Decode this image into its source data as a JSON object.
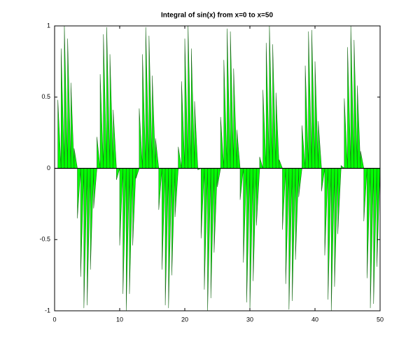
{
  "chart_data": {
    "type": "area",
    "title": "Integral of sin(x) from x=0 to x=50",
    "x": [
      0,
      0.5,
      1,
      1.5,
      2,
      2.5,
      3,
      3.5,
      4,
      4.5,
      5,
      5.5,
      6,
      6.5,
      7,
      7.5,
      8,
      8.5,
      9,
      9.5,
      10,
      10.5,
      11,
      11.5,
      12,
      12.5,
      13,
      13.5,
      14,
      14.5,
      15,
      15.5,
      16,
      16.5,
      17,
      17.5,
      18,
      18.5,
      19,
      19.5,
      20,
      20.5,
      21,
      21.5,
      22,
      22.5,
      23,
      23.5,
      24,
      24.5,
      25,
      25.5,
      26,
      26.5,
      27,
      27.5,
      28,
      28.5,
      29,
      29.5,
      30,
      30.5,
      31,
      31.5,
      32,
      32.5,
      33,
      33.5,
      34,
      34.5,
      35,
      35.5,
      36,
      36.5,
      37,
      37.5,
      38,
      38.5,
      39,
      39.5,
      40,
      40.5,
      41,
      41.5,
      42,
      42.5,
      43,
      43.5,
      44,
      44.5,
      45,
      45.5,
      46,
      46.5,
      47,
      47.5,
      48,
      48.5,
      49,
      49.5,
      50
    ],
    "values": [
      0,
      0.48,
      0.84,
      1.0,
      0.91,
      0.6,
      0.14,
      -0.35,
      -0.76,
      -0.98,
      -0.96,
      -0.71,
      -0.28,
      0.22,
      0.66,
      0.94,
      0.99,
      0.8,
      0.41,
      -0.08,
      -0.54,
      -0.88,
      -1.0,
      -0.88,
      -0.54,
      -0.07,
      0.42,
      0.8,
      0.99,
      0.93,
      0.65,
      0.21,
      -0.29,
      -0.71,
      -0.96,
      -0.98,
      -0.75,
      -0.34,
      0.15,
      0.61,
      0.91,
      1.0,
      0.84,
      0.47,
      -0.01,
      -0.49,
      -0.85,
      -1.0,
      -0.91,
      -0.59,
      -0.13,
      0.36,
      0.76,
      0.98,
      0.96,
      0.7,
      0.27,
      -0.22,
      -0.66,
      -0.94,
      -0.99,
      -0.79,
      -0.4,
      0.08,
      0.55,
      0.88,
      1.0,
      0.87,
      0.53,
      0.06,
      -0.43,
      -0.81,
      -0.99,
      -0.93,
      -0.64,
      -0.2,
      0.3,
      0.72,
      0.96,
      0.97,
      0.75,
      0.33,
      -0.16,
      -0.61,
      -0.92,
      -1.0,
      -0.83,
      -0.46,
      0.02,
      0.49,
      0.85,
      1.0,
      0.9,
      0.58,
      0.12,
      -0.37,
      -0.77,
      -0.98,
      -0.95,
      -0.69,
      -0.26
    ],
    "color": "#00ff00",
    "xlim": [
      0,
      50
    ],
    "xticks": [
      0,
      10,
      20,
      30,
      40,
      50
    ],
    "ylim": [
      -1,
      1
    ],
    "yticks": [
      -1,
      -0.5,
      0,
      0.5,
      1
    ]
  }
}
